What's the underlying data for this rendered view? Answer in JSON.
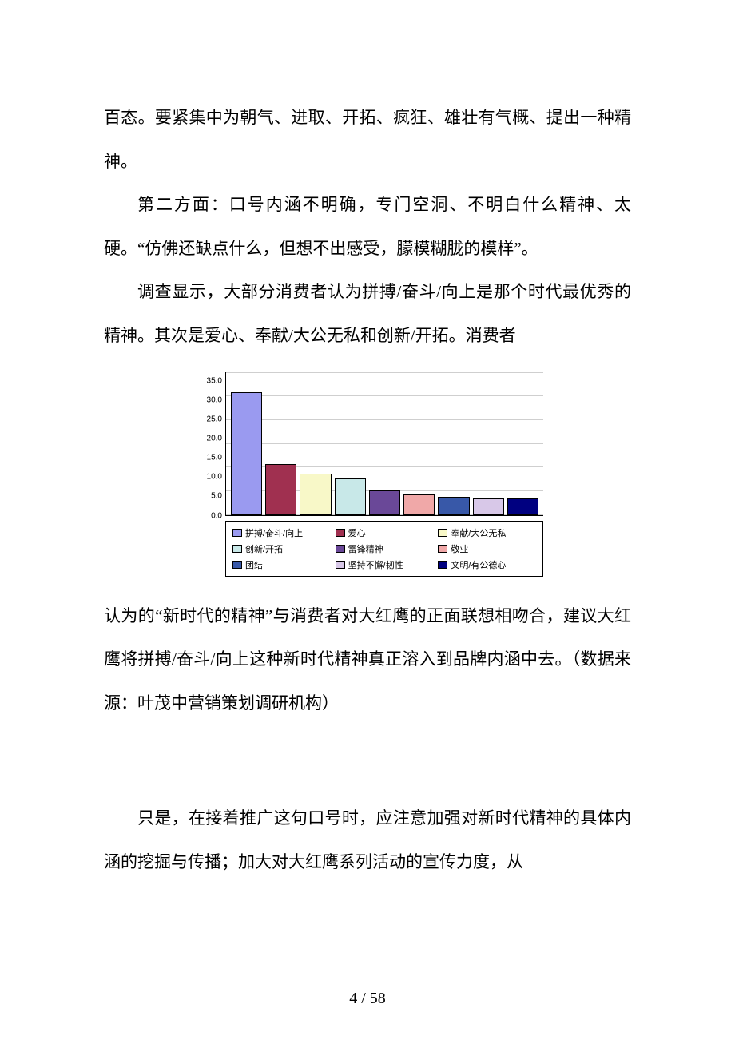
{
  "paragraphs": {
    "p1": "百态。要紧集中为朝气、进取、开拓、疯狂、雄壮有气概、提出一种精神。",
    "p2": "第二方面：口号内涵不明确，专门空洞、不明白什么精神、太硬。“仿佛还缺点什么，但想不出感受，朦模糊胧的模样”。",
    "p3": "调查显示，大部分消费者认为拼搏/奋斗/向上是那个时代最优秀的精神。其次是爱心、奉献/大公无私和创新/开拓。消费者",
    "p4": "认为的“新时代的精神”与消费者对大红鹰的正面联想相吻合，建议大红鹰将拼搏/奋斗/向上这种新时代精神真正溶入到品牌内涵中去。（数据来源：叶茂中营销策划调研机构）",
    "p5": "只是，在接着推广这句口号时，应注意加强对新时代精神的具体内涵的挖掘与传播；加大对大红鹰系列活动的宣传力度，从"
  },
  "chart": {
    "type": "bar",
    "ylim": [
      0,
      35
    ],
    "ytick_step": 5,
    "yticks": [
      "35.0",
      "30.0",
      "25.0",
      "20.0",
      "15.0",
      "10.0",
      "5.0",
      "0.0"
    ],
    "background_color": "#ffffff",
    "grid_color": "#cfcfcf",
    "axis_color": "#000000",
    "label_fontsize": 10,
    "legend_fontsize": 11,
    "bar_border_color": "#000000",
    "series": [
      {
        "label": "拼搏/奋斗/向上",
        "value": 30.0,
        "color": "#9a9af0"
      },
      {
        "label": "爱心",
        "value": 12.5,
        "color": "#a03050"
      },
      {
        "label": "奉献/大公无私",
        "value": 10.0,
        "color": "#f8f8c8"
      },
      {
        "label": "创新/开拓",
        "value": 9.0,
        "color": "#c8e8e8"
      },
      {
        "label": "雷锋精神",
        "value": 6.0,
        "color": "#6a4898"
      },
      {
        "label": "敬业",
        "value": 5.0,
        "color": "#f0a8a8"
      },
      {
        "label": "团结",
        "value": 4.5,
        "color": "#3858a8"
      },
      {
        "label": "坚持不懈/韧性",
        "value": 4.0,
        "color": "#d8c8e8"
      },
      {
        "label": "文明/有公德心",
        "value": 4.0,
        "color": "#000080"
      }
    ]
  },
  "page_number": "4 / 58"
}
